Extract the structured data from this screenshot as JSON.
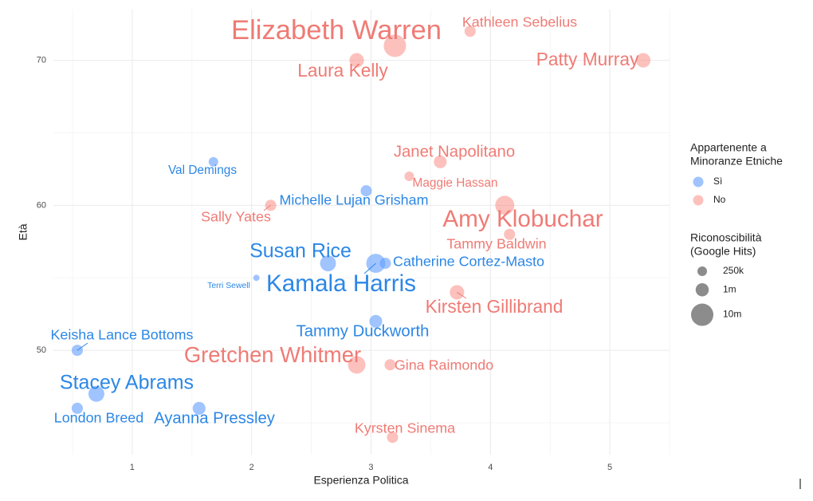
{
  "chart_data": {
    "type": "scatter",
    "x_label": "Esperienza Politica",
    "y_label": "Età",
    "xlim": [
      0.34,
      5.5
    ],
    "ylim": [
      42.8,
      73.5
    ],
    "xticks": [
      1,
      2,
      3,
      4,
      5
    ],
    "yticks": [
      50,
      60,
      70
    ],
    "grid": true,
    "color_legend_title": [
      "Appartenente a",
      "Minoranze Etniche"
    ],
    "size_legend_title": [
      "Riconoscibilità",
      "(Google Hits)"
    ],
    "size_legend": [
      {
        "value": 250000,
        "label": "250k"
      },
      {
        "value": 1000000,
        "label": "1m"
      },
      {
        "value": 10000000,
        "label": "10m"
      }
    ],
    "series": [
      {
        "name": "Sì",
        "color": "#619cff",
        "label_color": "#2b87e6",
        "labels": [
          "Val Demings",
          "Michelle Lujan Grisham",
          "Susan Rice",
          "Kamala Harris",
          "Catherine Cortez-Masto",
          "Terri Sewell",
          "Tammy Duckworth",
          "Keisha Lance Bottoms",
          "Stacey Abrams",
          "London Breed",
          "Ayanna Pressley"
        ],
        "x": [
          1.68,
          2.96,
          2.64,
          3.04,
          3.12,
          2.04,
          3.04,
          0.54,
          0.7,
          0.54,
          1.56
        ],
        "values": [
          63,
          61,
          56,
          56,
          56,
          55,
          52,
          50,
          47,
          46,
          46
        ],
        "sizes": [
          250000,
          500000,
          2300000,
          5000000,
          500000,
          40000,
          900000,
          500000,
          2300000,
          500000,
          900000
        ]
      },
      {
        "name": "No",
        "color": "#f8766d",
        "label_color": "#ef7b75",
        "labels": [
          "Elizabeth Warren",
          "Kathleen Sebelius",
          "Laura Kelly",
          "Patty Murray",
          "Janet Napolitano",
          "Maggie Hassan",
          "Sally Yates",
          "Amy Klobuchar",
          "Tammy Baldwin",
          "Kirsten Gillibrand",
          "Gretchen Whitmer",
          "Gina Raimondo",
          "Kyrsten Sinema"
        ],
        "x": [
          3.2,
          3.83,
          2.88,
          5.28,
          3.58,
          3.32,
          2.16,
          4.12,
          4.16,
          3.72,
          2.88,
          3.16,
          3.18
        ],
        "values": [
          71,
          72,
          70,
          70,
          63,
          62,
          60,
          60,
          58,
          54,
          49,
          49,
          44
        ],
        "sizes": [
          10000000,
          500000,
          1500000,
          1500000,
          900000,
          250000,
          500000,
          5000000,
          500000,
          1500000,
          3500000,
          500000,
          500000
        ]
      }
    ]
  }
}
